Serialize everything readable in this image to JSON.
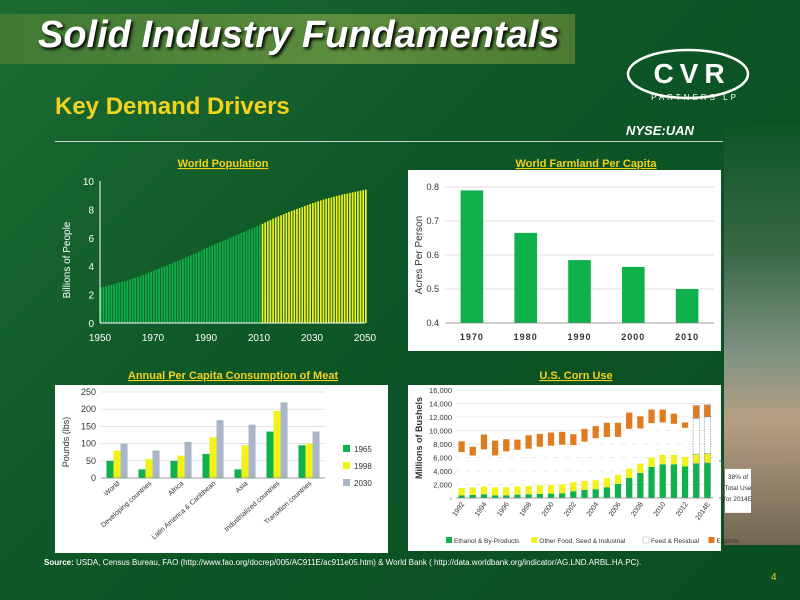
{
  "slide": {
    "title": "Solid Industry Fundamentals",
    "subtitle": "Key Demand Drivers",
    "ticker": "NYSE:UAN",
    "logo_main": "CVR",
    "logo_sub": "PARTNERS LP",
    "page_number": "4",
    "source_label": "Source:",
    "source_text": "USDA, Census Bureau, FAO (http://www.fao.org/docrep/005/AC911E/ac911e05.htm) & World Bank ( http://data.worldbank.org/indicator/AG.LND.ARBL.HA.PC).",
    "colors": {
      "accent_yellow": "#f2d21b",
      "bar_green": "#0fb14a",
      "background": "#0d5626"
    }
  },
  "chart_data": [
    {
      "type": "area",
      "title": "World Population",
      "xlabel": "",
      "ylabel": "Billions of People",
      "xlim": [
        1950,
        2050
      ],
      "ylim": [
        0,
        10
      ],
      "xticks": [
        1950,
        1970,
        1990,
        2010,
        2030,
        2050
      ],
      "yticks": [
        0,
        2,
        4,
        6,
        8,
        10
      ],
      "projection_start": 2011,
      "x": [
        1950,
        1955,
        1960,
        1965,
        1970,
        1975,
        1980,
        1985,
        1990,
        1995,
        2000,
        2005,
        2010,
        2015,
        2020,
        2025,
        2030,
        2035,
        2040,
        2045,
        2050
      ],
      "values": [
        2.5,
        2.75,
        3.0,
        3.3,
        3.7,
        4.05,
        4.45,
        4.85,
        5.3,
        5.7,
        6.1,
        6.5,
        6.9,
        7.35,
        7.75,
        8.1,
        8.45,
        8.75,
        9.0,
        9.2,
        9.4
      ],
      "colors": {
        "historical": "#0fb14a",
        "projected": "#f2f21b"
      }
    },
    {
      "type": "bar",
      "title": "World Farmland Per Capita",
      "xlabel": "",
      "ylabel": "Acres Per Person",
      "categories": [
        "1970",
        "1980",
        "1990",
        "2000",
        "2010"
      ],
      "values": [
        0.79,
        0.665,
        0.585,
        0.565,
        0.5
      ],
      "ylim": [
        0.4,
        0.8
      ],
      "yticks": [
        "0.4",
        "0.5",
        "0.6",
        "0.7",
        "0.8"
      ]
    },
    {
      "type": "bar",
      "title": "Annual Per Capita Consumption of Meat",
      "xlabel": "",
      "ylabel": "Pounds (lbs)",
      "categories": [
        "World",
        "Developing countries",
        "Africa",
        "Latin America & Caribbean",
        "Asia",
        "Industrialized countries",
        "Transition countries"
      ],
      "series": [
        {
          "name": "1965",
          "color": "#0fb14a",
          "values": [
            50,
            25,
            50,
            70,
            25,
            135,
            95
          ]
        },
        {
          "name": "1998",
          "color": "#f2f21b",
          "values": [
            80,
            55,
            65,
            118,
            95,
            195,
            100
          ]
        },
        {
          "name": "2030",
          "color": "#a8b6c8",
          "values": [
            100,
            80,
            105,
            168,
            155,
            220,
            135
          ]
        }
      ],
      "ylim": [
        0,
        250
      ],
      "yticks": [
        0,
        50,
        100,
        150,
        200,
        250
      ]
    },
    {
      "type": "bar",
      "title": "U.S. Corn Use",
      "xlabel": "",
      "ylabel": "Millions of Bushels",
      "stacked": true,
      "categories": [
        "1992",
        "1993",
        "1994",
        "1995",
        "1996",
        "1997",
        "1998",
        "1999",
        "2000",
        "2001",
        "2002",
        "2003",
        "2004",
        "2005",
        "2006",
        "2007",
        "2008",
        "2009",
        "2010",
        "2011",
        "2012",
        "2013",
        "2014E"
      ],
      "tick_labels": [
        "1992",
        "1994",
        "1996",
        "1998",
        "2000",
        "2002",
        "2004",
        "2006",
        "2008",
        "2010",
        "2012",
        "2014E"
      ],
      "series": [
        {
          "name": "Ethanol & By-Products",
          "color": "#0fb14a",
          "values": [
            400,
            450,
            550,
            400,
            400,
            500,
            550,
            600,
            650,
            700,
            1000,
            1200,
            1300,
            1600,
            2100,
            3000,
            3700,
            4600,
            5000,
            5000,
            4700,
            5100,
            5200
          ]
        },
        {
          "name": "Other Food, Seed & Industrial",
          "color": "#f2f21b",
          "values": [
            1100,
            1150,
            1150,
            1200,
            1200,
            1250,
            1250,
            1300,
            1300,
            1300,
            1350,
            1350,
            1350,
            1350,
            1350,
            1350,
            1400,
            1400,
            1400,
            1400,
            1400,
            1400,
            1400
          ]
        },
        {
          "name": "Feed & Residual",
          "color": "#ffffff",
          "values": [
            5300,
            4700,
            5500,
            4700,
            5300,
            5400,
            5500,
            5700,
            5800,
            5900,
            5500,
            5800,
            6200,
            6100,
            5600,
            5900,
            5200,
            5100,
            4800,
            4600,
            4300,
            5300,
            5400
          ]
        },
        {
          "name": "Exports",
          "color": "#e07b1f",
          "values": [
            1600,
            1300,
            2200,
            2200,
            1800,
            1500,
            2000,
            1900,
            1950,
            1900,
            1600,
            1900,
            1800,
            2100,
            2100,
            2400,
            1800,
            2000,
            1900,
            1500,
            800,
            1900,
            1800
          ]
        }
      ],
      "ylim": [
        0,
        16000
      ],
      "yticks": [
        "-",
        "2,000",
        "4,000",
        "6,000",
        "8,000",
        "10,000",
        "12,000",
        "14,000",
        "16,000"
      ],
      "annotation": "38% of Total Use for 2014E"
    }
  ]
}
